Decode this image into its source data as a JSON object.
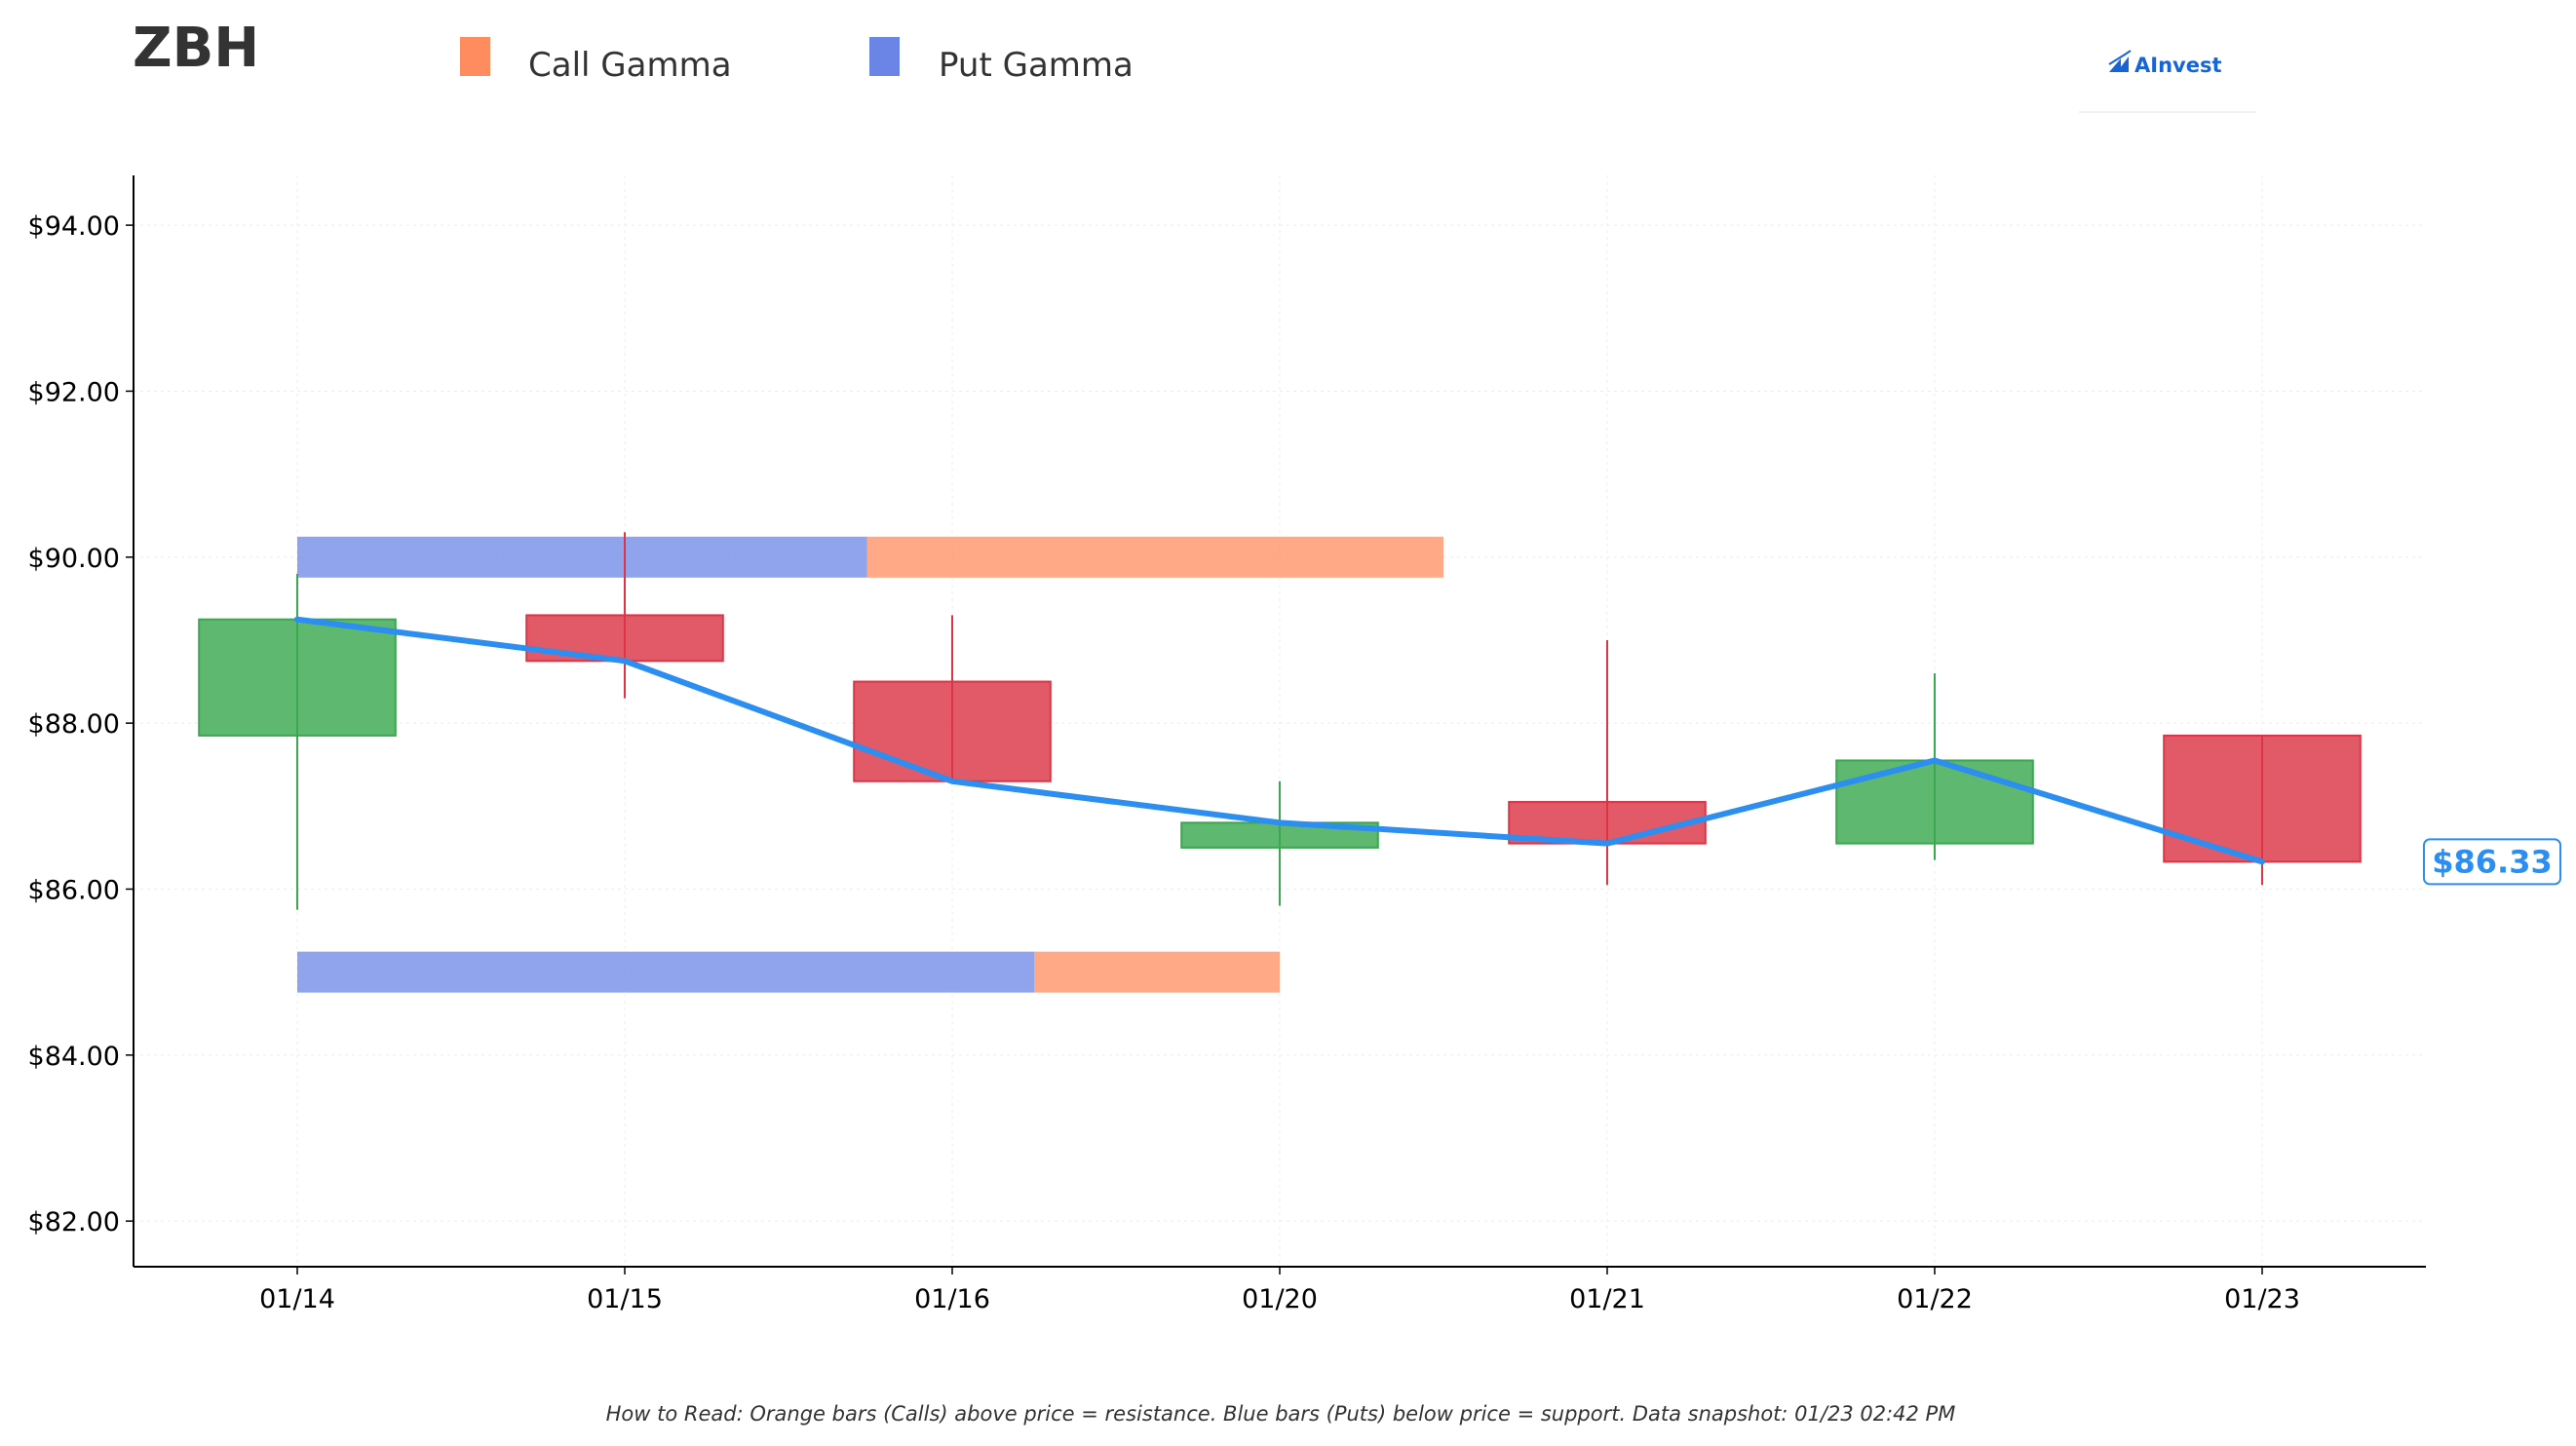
{
  "chart_data": {
    "type": "candlestick",
    "title": "ZBH",
    "legend": {
      "placement": "top",
      "items": [
        {
          "label": "Call Gamma",
          "color": "#ff8c5f"
        },
        {
          "label": "Put Gamma",
          "color": "#6a85e6"
        }
      ]
    },
    "brand": "AInvest",
    "categories": [
      "01/14",
      "01/15",
      "01/16",
      "01/20",
      "01/21",
      "01/22",
      "01/23"
    ],
    "yticks": [
      82,
      84,
      86,
      88,
      90,
      92,
      94
    ],
    "ytick_labels": [
      "$82.00",
      "$84.00",
      "$86.00",
      "$88.00",
      "$90.00",
      "$92.00",
      "$94.00"
    ],
    "ylim": [
      81.45,
      94.6
    ],
    "xlim": [
      -0.5,
      6.5
    ],
    "grid": true,
    "candles": [
      {
        "date": "01/14",
        "open": 87.85,
        "high": 89.8,
        "low": 85.75,
        "close": 89.25
      },
      {
        "date": "01/15",
        "open": 89.3,
        "high": 90.3,
        "low": 88.3,
        "close": 88.75
      },
      {
        "date": "01/16",
        "open": 88.5,
        "high": 89.3,
        "low": 87.3,
        "close": 87.3
      },
      {
        "date": "01/20",
        "open": 86.5,
        "high": 87.3,
        "low": 85.8,
        "close": 86.8
      },
      {
        "date": "01/21",
        "open": 87.05,
        "high": 89.0,
        "low": 86.05,
        "close": 86.55
      },
      {
        "date": "01/22",
        "open": 86.55,
        "high": 88.6,
        "low": 86.35,
        "close": 87.55
      },
      {
        "date": "01/23",
        "open": 87.85,
        "high": 87.85,
        "low": 86.05,
        "close": 86.33
      }
    ],
    "close_line": {
      "color": "#2b8ef0",
      "values": [
        89.25,
        88.75,
        87.3,
        86.8,
        86.55,
        87.55,
        86.33
      ]
    },
    "gamma_levels": [
      {
        "price": 90.0,
        "put_start": 0,
        "put_end": 1.74,
        "call_end": 3.5
      },
      {
        "price": 85.0,
        "put_start": 0,
        "put_end": 2.25,
        "call_end": 3.0
      }
    ],
    "last_price": 86.33,
    "last_price_label": "$86.33",
    "colors": {
      "up": "#3aa84f",
      "down": "#dc3545",
      "put": "#6a85e6",
      "call": "#ff8c5f",
      "line": "#2b8ef0"
    }
  },
  "footnote": "How to Read: Orange bars (Calls) above price = resistance. Blue bars (Puts) below price = support. Data snapshot: 01/23 02:42 PM"
}
